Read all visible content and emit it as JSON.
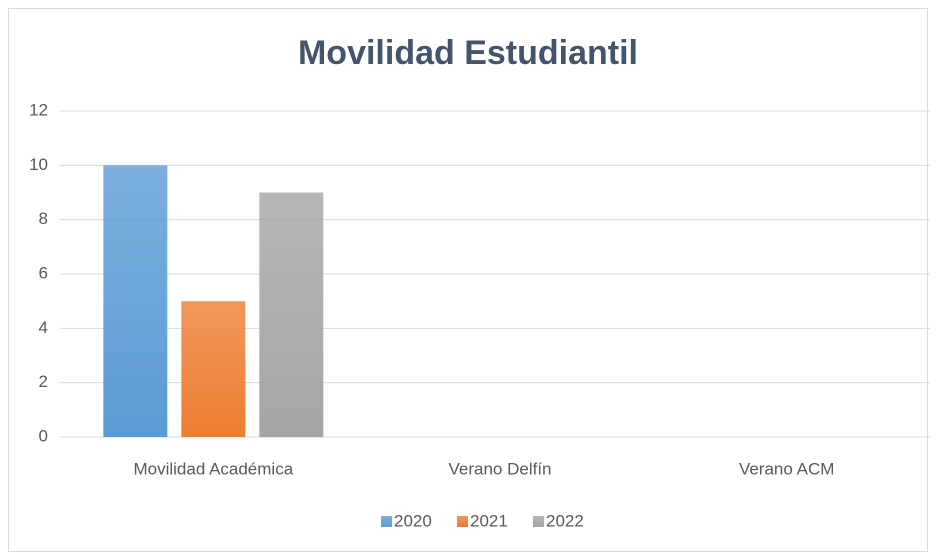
{
  "chart_data": {
    "type": "bar",
    "title": "Movilidad Estudiantil",
    "categories": [
      "Movilidad Académica",
      "Verano Delfín",
      "Verano ACM"
    ],
    "series": [
      {
        "name": "2020",
        "color": "#5b9bd5",
        "values": [
          10,
          0,
          0
        ]
      },
      {
        "name": "2021",
        "color": "#ed7d31",
        "values": [
          5,
          0,
          0
        ]
      },
      {
        "name": "2022",
        "color": "#a5a5a5",
        "values": [
          9,
          0,
          0
        ]
      }
    ],
    "ylim": [
      0,
      12
    ],
    "yticks": [
      0,
      2,
      4,
      6,
      8,
      10,
      12
    ],
    "grid": true,
    "legend": "bottom"
  }
}
